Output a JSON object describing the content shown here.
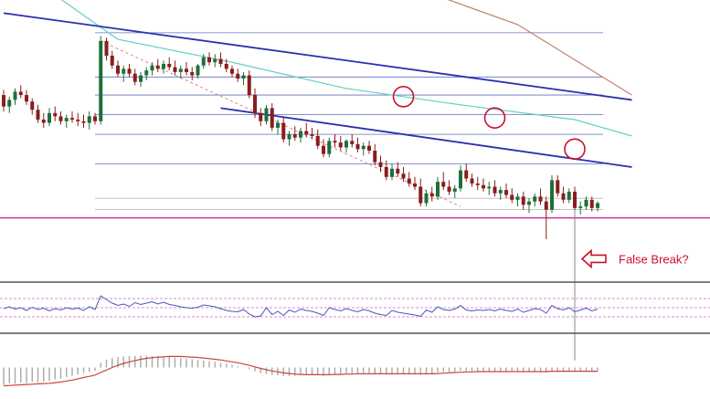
{
  "chart_data": [
    {
      "type": "candlestick",
      "panel": "price",
      "candles": [
        [
          1.312,
          1.315,
          1.302,
          1.305
        ],
        [
          1.305,
          1.311,
          1.301,
          1.309
        ],
        [
          1.309,
          1.316,
          1.306,
          1.314
        ],
        [
          1.314,
          1.318,
          1.31,
          1.312
        ],
        [
          1.312,
          1.315,
          1.306,
          1.308
        ],
        [
          1.308,
          1.31,
          1.3,
          1.303
        ],
        [
          1.303,
          1.306,
          1.295,
          1.297
        ],
        [
          1.297,
          1.301,
          1.292,
          1.295
        ],
        [
          1.295,
          1.304,
          1.293,
          1.301
        ],
        [
          1.301,
          1.305,
          1.296,
          1.299
        ],
        [
          1.299,
          1.302,
          1.294,
          1.296
        ],
        [
          1.296,
          1.3,
          1.292,
          1.298
        ],
        [
          1.298,
          1.302,
          1.295,
          1.297
        ],
        [
          1.297,
          1.301,
          1.293,
          1.296
        ],
        [
          1.296,
          1.3,
          1.292,
          1.295
        ],
        [
          1.295,
          1.302,
          1.291,
          1.299
        ],
        [
          1.299,
          1.301,
          1.294,
          1.296
        ],
        [
          1.296,
          1.348,
          1.294,
          1.345
        ],
        [
          1.345,
          1.347,
          1.333,
          1.336
        ],
        [
          1.336,
          1.339,
          1.328,
          1.33
        ],
        [
          1.33,
          1.333,
          1.323,
          1.325
        ],
        [
          1.325,
          1.33,
          1.32,
          1.328
        ],
        [
          1.328,
          1.331,
          1.323,
          1.325
        ],
        [
          1.325,
          1.328,
          1.318,
          1.32
        ],
        [
          1.32,
          1.326,
          1.317,
          1.324
        ],
        [
          1.324,
          1.329,
          1.321,
          1.327
        ],
        [
          1.327,
          1.332,
          1.324,
          1.33
        ],
        [
          1.33,
          1.334,
          1.326,
          1.328
        ],
        [
          1.328,
          1.333,
          1.325,
          1.331
        ],
        [
          1.331,
          1.335,
          1.327,
          1.329
        ],
        [
          1.329,
          1.333,
          1.324,
          1.326
        ],
        [
          1.326,
          1.33,
          1.322,
          1.328
        ],
        [
          1.328,
          1.332,
          1.324,
          1.326
        ],
        [
          1.326,
          1.329,
          1.321,
          1.324
        ],
        [
          1.324,
          1.331,
          1.322,
          1.33
        ],
        [
          1.33,
          1.337,
          1.328,
          1.335
        ],
        [
          1.335,
          1.338,
          1.33,
          1.332
        ],
        [
          1.332,
          1.337,
          1.329,
          1.334
        ],
        [
          1.334,
          1.338,
          1.329,
          1.331
        ],
        [
          1.331,
          1.334,
          1.326,
          1.328
        ],
        [
          1.328,
          1.33,
          1.323,
          1.325
        ],
        [
          1.325,
          1.328,
          1.32,
          1.322
        ],
        [
          1.322,
          1.326,
          1.318,
          1.324
        ],
        [
          1.324,
          1.327,
          1.31,
          1.312
        ],
        [
          1.312,
          1.316,
          1.298,
          1.301
        ],
        [
          1.301,
          1.304,
          1.293,
          1.296
        ],
        [
          1.296,
          1.306,
          1.294,
          1.304
        ],
        [
          1.304,
          1.307,
          1.29,
          1.292
        ],
        [
          1.292,
          1.297,
          1.288,
          1.295
        ],
        [
          1.295,
          1.299,
          1.283,
          1.285
        ],
        [
          1.285,
          1.29,
          1.281,
          1.288
        ],
        [
          1.288,
          1.293,
          1.284,
          1.286
        ],
        [
          1.286,
          1.292,
          1.283,
          1.29
        ],
        [
          1.29,
          1.295,
          1.286,
          1.288
        ],
        [
          1.288,
          1.292,
          1.285,
          1.287
        ],
        [
          1.287,
          1.291,
          1.279,
          1.281
        ],
        [
          1.281,
          1.285,
          1.274,
          1.276
        ],
        [
          1.276,
          1.286,
          1.274,
          1.284
        ],
        [
          1.284,
          1.288,
          1.28,
          1.283
        ],
        [
          1.283,
          1.287,
          1.278,
          1.28
        ],
        [
          1.28,
          1.285,
          1.277,
          1.284
        ],
        [
          1.284,
          1.288,
          1.28,
          1.282
        ],
        [
          1.282,
          1.286,
          1.277,
          1.279
        ],
        [
          1.279,
          1.283,
          1.275,
          1.281
        ],
        [
          1.281,
          1.284,
          1.276,
          1.278
        ],
        [
          1.278,
          1.282,
          1.269,
          1.271
        ],
        [
          1.271,
          1.275,
          1.265,
          1.268
        ],
        [
          1.268,
          1.272,
          1.26,
          1.262
        ],
        [
          1.262,
          1.27,
          1.26,
          1.267
        ],
        [
          1.267,
          1.271,
          1.262,
          1.264
        ],
        [
          1.264,
          1.268,
          1.259,
          1.261
        ],
        [
          1.261,
          1.265,
          1.256,
          1.258
        ],
        [
          1.258,
          1.262,
          1.254,
          1.256
        ],
        [
          1.256,
          1.261,
          1.244,
          1.246
        ],
        [
          1.246,
          1.254,
          1.244,
          1.252
        ],
        [
          1.252,
          1.256,
          1.247,
          1.25
        ],
        [
          1.25,
          1.262,
          1.248,
          1.259
        ],
        [
          1.259,
          1.265,
          1.254,
          1.256
        ],
        [
          1.256,
          1.26,
          1.251,
          1.253
        ],
        [
          1.253,
          1.257,
          1.249,
          1.255
        ],
        [
          1.255,
          1.269,
          1.253,
          1.266
        ],
        [
          1.266,
          1.27,
          1.259,
          1.261
        ],
        [
          1.261,
          1.264,
          1.256,
          1.258
        ],
        [
          1.258,
          1.262,
          1.254,
          1.257
        ],
        [
          1.257,
          1.261,
          1.253,
          1.255
        ],
        [
          1.255,
          1.259,
          1.251,
          1.256
        ],
        [
          1.256,
          1.26,
          1.25,
          1.252
        ],
        [
          1.252,
          1.256,
          1.248,
          1.254
        ],
        [
          1.254,
          1.258,
          1.249,
          1.251
        ],
        [
          1.251,
          1.255,
          1.246,
          1.248
        ],
        [
          1.248,
          1.252,
          1.244,
          1.25
        ],
        [
          1.25,
          1.253,
          1.242,
          1.245
        ],
        [
          1.245,
          1.249,
          1.24,
          1.247
        ],
        [
          1.247,
          1.252,
          1.244,
          1.25
        ],
        [
          1.25,
          1.255,
          1.245,
          1.247
        ],
        [
          1.247,
          1.25,
          1.224,
          1.242
        ],
        [
          1.242,
          1.263,
          1.24,
          1.26
        ],
        [
          1.26,
          1.263,
          1.25,
          1.252
        ],
        [
          1.252,
          1.256,
          1.246,
          1.248
        ],
        [
          1.248,
          1.255,
          1.246,
          1.253
        ],
        [
          1.253,
          1.256,
          1.24,
          1.243
        ],
        [
          1.243,
          1.247,
          1.239,
          1.244
        ],
        [
          1.244,
          1.25,
          1.242,
          1.248
        ],
        [
          1.248,
          1.25,
          1.241,
          1.243
        ],
        [
          1.243,
          1.247,
          1.241,
          1.246
        ]
      ],
      "ylim": [
        1.2,
        1.37
      ],
      "colors": {
        "bull": "#1f6f3a",
        "bear": "#8a1d1d"
      },
      "horizontal_levels": [
        {
          "value": 1.35,
          "color": "#4a56b8"
        },
        {
          "value": 1.323,
          "color": "#4a56b8"
        },
        {
          "value": 1.312,
          "color": "#4a56b8"
        },
        {
          "value": 1.3,
          "color": "#4a56b8"
        },
        {
          "value": 1.288,
          "color": "#4a56b8"
        },
        {
          "value": 1.27,
          "color": "#4a56b8"
        },
        {
          "value": 1.249,
          "color": "#a0a0a0"
        },
        {
          "value": 1.242,
          "color": "#a0a0a0"
        },
        {
          "value": 1.237,
          "color": "#cc3399"
        }
      ],
      "trendlines": [
        {
          "from": [
            0,
            1.362
          ],
          "to": [
            110,
            1.309
          ],
          "color": "#2b2fb0"
        },
        {
          "from": [
            38,
            1.304
          ],
          "to": [
            110,
            1.268
          ],
          "color": "#2b2fb0"
        },
        {
          "from": [
            17,
            1.345
          ],
          "to": [
            80,
            1.244
          ],
          "color": "#e08080",
          "style": "dashed"
        }
      ],
      "moving_averages": [
        {
          "color": "#c08070",
          "points": [
            [
              40,
              1.395
            ],
            [
              70,
              1.38
            ],
            [
              90,
              1.355
            ],
            [
              110,
              1.312
            ]
          ]
        },
        {
          "color": "#5ed0c0",
          "points": [
            [
              0,
              1.395
            ],
            [
              20,
              1.346
            ],
            [
              40,
              1.332
            ],
            [
              60,
              1.316
            ],
            [
              80,
              1.306
            ],
            [
              100,
              1.297
            ],
            [
              110,
              1.287
            ]
          ]
        }
      ],
      "circles": [
        {
          "x": 70,
          "y": 1.311,
          "color": "#c8102e"
        },
        {
          "x": 86,
          "y": 1.298,
          "color": "#c8102e"
        },
        {
          "x": 100,
          "y": 1.279,
          "color": "#c8102e"
        }
      ],
      "spike": {
        "x": 100,
        "from": 1.242,
        "to": 1.15,
        "color": "#888888"
      },
      "annotation": {
        "text": "False Break?",
        "color": "#c8102e",
        "arrow_to_x": 100
      }
    },
    {
      "type": "line",
      "panel": "oscillator",
      "color": "#4a56b8",
      "ylim": [
        0,
        100
      ],
      "guide_levels": [
        70,
        50,
        30
      ],
      "guide_color": "#cc66cc",
      "values": [
        48,
        52,
        47,
        50,
        44,
        51,
        46,
        49,
        43,
        48,
        45,
        50,
        47,
        49,
        44,
        52,
        46,
        76,
        68,
        60,
        55,
        58,
        53,
        61,
        57,
        60,
        63,
        58,
        62,
        57,
        55,
        52,
        50,
        49,
        51,
        56,
        54,
        52,
        48,
        44,
        42,
        41,
        46,
        36,
        30,
        32,
        50,
        35,
        42,
        33,
        45,
        40,
        47,
        44,
        42,
        38,
        33,
        50,
        46,
        43,
        48,
        44,
        41,
        46,
        43,
        38,
        35,
        33,
        44,
        40,
        38,
        36,
        34,
        31,
        45,
        40,
        52,
        46,
        44,
        47,
        55,
        45,
        43,
        45,
        44,
        46,
        43,
        47,
        44,
        42,
        47,
        40,
        44,
        48,
        46,
        38,
        55,
        48,
        45,
        50,
        41,
        45,
        49,
        43,
        47
      ],
      "x_start": 0
    },
    {
      "type": "histogram_line",
      "panel": "macd",
      "ylim": [
        -1,
        1
      ],
      "hist_color": "#a8a8a8",
      "line_color": "#d04040",
      "zero_line": true,
      "hist": [
        -0.55,
        -0.5,
        -0.52,
        -0.48,
        -0.5,
        -0.45,
        -0.47,
        -0.44,
        -0.42,
        -0.38,
        -0.35,
        -0.3,
        -0.26,
        -0.22,
        -0.18,
        -0.14,
        -0.1,
        0.15,
        0.25,
        0.3,
        0.33,
        0.35,
        0.36,
        0.37,
        0.38,
        0.38,
        0.37,
        0.36,
        0.35,
        0.34,
        0.32,
        0.3,
        0.28,
        0.26,
        0.24,
        0.22,
        0.2,
        0.18,
        0.15,
        0.12,
        0.08,
        0.04,
        0.0,
        -0.05,
        -0.12,
        -0.18,
        -0.2,
        -0.24,
        -0.25,
        -0.28,
        -0.27,
        -0.26,
        -0.24,
        -0.23,
        -0.22,
        -0.24,
        -0.26,
        -0.22,
        -0.21,
        -0.2,
        -0.19,
        -0.18,
        -0.18,
        -0.17,
        -0.17,
        -0.19,
        -0.21,
        -0.22,
        -0.2,
        -0.2,
        -0.2,
        -0.21,
        -0.21,
        -0.23,
        -0.2,
        -0.19,
        -0.15,
        -0.14,
        -0.14,
        -0.13,
        -0.1,
        -0.11,
        -0.12,
        -0.12,
        -0.13,
        -0.12,
        -0.13,
        -0.12,
        -0.13,
        -0.14,
        -0.13,
        -0.15,
        -0.14,
        -0.13,
        -0.13,
        -0.16,
        -0.1,
        -0.1,
        -0.11,
        -0.1,
        -0.12,
        -0.12,
        -0.11,
        -0.12,
        -0.11
      ],
      "signal": [
        -0.58,
        -0.57,
        -0.56,
        -0.55,
        -0.54,
        -0.53,
        -0.52,
        -0.51,
        -0.5,
        -0.48,
        -0.46,
        -0.43,
        -0.4,
        -0.36,
        -0.32,
        -0.28,
        -0.24,
        -0.16,
        -0.08,
        0.0,
        0.07,
        0.13,
        0.18,
        0.22,
        0.26,
        0.29,
        0.31,
        0.33,
        0.34,
        0.35,
        0.35,
        0.35,
        0.34,
        0.33,
        0.32,
        0.3,
        0.28,
        0.26,
        0.24,
        0.21,
        0.18,
        0.15,
        0.11,
        0.07,
        0.02,
        -0.03,
        -0.07,
        -0.11,
        -0.14,
        -0.17,
        -0.19,
        -0.21,
        -0.22,
        -0.23,
        -0.23,
        -0.23,
        -0.23,
        -0.23,
        -0.22,
        -0.22,
        -0.21,
        -0.21,
        -0.2,
        -0.2,
        -0.2,
        -0.2,
        -0.2,
        -0.2,
        -0.2,
        -0.2,
        -0.2,
        -0.2,
        -0.2,
        -0.2,
        -0.2,
        -0.2,
        -0.19,
        -0.18,
        -0.17,
        -0.16,
        -0.15,
        -0.14,
        -0.14,
        -0.13,
        -0.13,
        -0.13,
        -0.13,
        -0.13,
        -0.13,
        -0.13,
        -0.13,
        -0.13,
        -0.13,
        -0.13,
        -0.13,
        -0.13,
        -0.12,
        -0.12,
        -0.12,
        -0.12,
        -0.12,
        -0.12,
        -0.12,
        -0.12,
        -0.12
      ]
    }
  ]
}
